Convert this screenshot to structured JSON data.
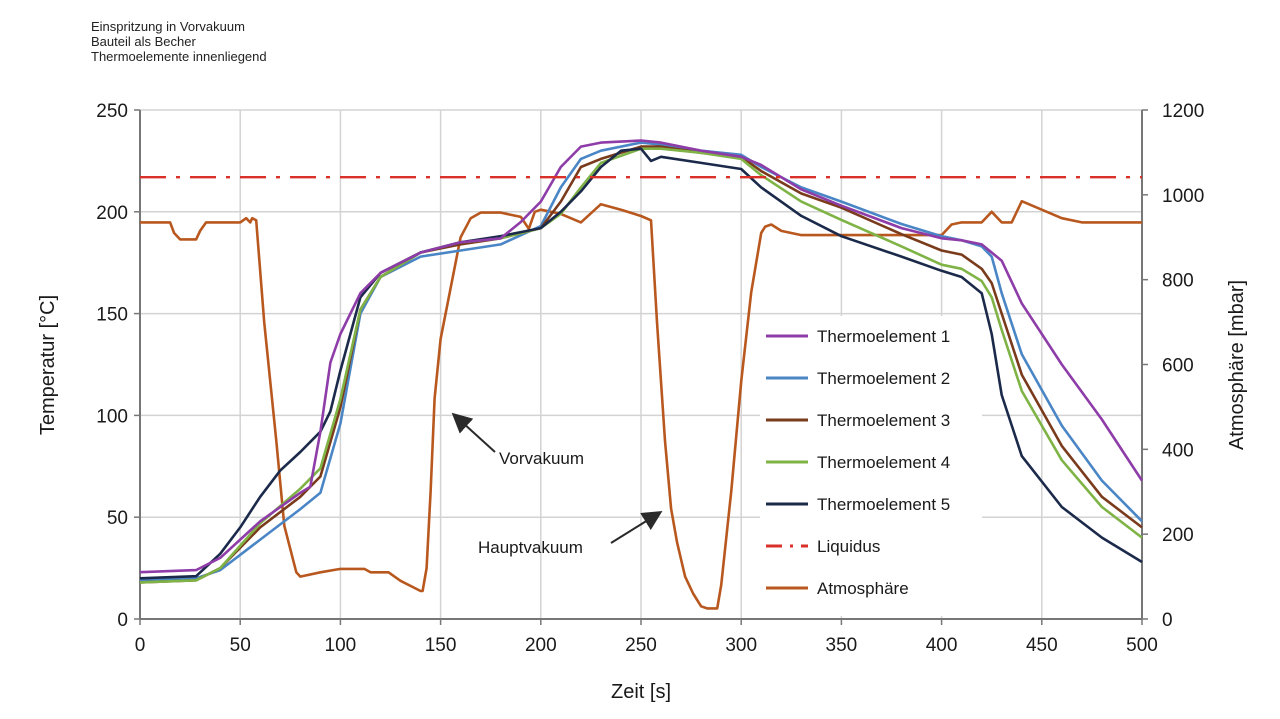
{
  "chart_data": {
    "type": "line",
    "subtitle_lines": [
      "Einspritzung in Vorvakuum",
      "Bauteil als Becher",
      "Thermoelemente innenliegend"
    ],
    "xlabel": "Zeit [s]",
    "ylabel": "Temperatur [°C]",
    "y2label": "Atmosphäre [mbar]",
    "xlim": [
      0,
      500
    ],
    "ylim": [
      0,
      250
    ],
    "y2lim": [
      0,
      1200
    ],
    "xticks": [
      "0",
      "50",
      "100",
      "150",
      "200",
      "250",
      "300",
      "350",
      "400",
      "450",
      "500"
    ],
    "yticks": [
      "0",
      "50",
      "100",
      "150",
      "200",
      "250"
    ],
    "y2ticks": [
      "0",
      "200",
      "400",
      "600",
      "800",
      "1000",
      "1200"
    ],
    "grid": true,
    "legend_position": "center-right",
    "series": [
      {
        "name": "Thermoelement 1",
        "axis": "left",
        "color": "#8e3ca8",
        "style": "solid",
        "x": [
          0,
          28,
          40,
          60,
          80,
          85,
          90,
          95,
          100,
          110,
          120,
          140,
          160,
          180,
          190,
          200,
          210,
          220,
          230,
          250,
          260,
          280,
          300,
          310,
          330,
          350,
          380,
          400,
          410,
          420,
          430,
          440,
          460,
          480,
          500
        ],
        "y": [
          23,
          24,
          30,
          48,
          62,
          65,
          92,
          126,
          140,
          160,
          170,
          180,
          185,
          187,
          195,
          205,
          222,
          232,
          234,
          235,
          234,
          230,
          227,
          223,
          211,
          203,
          192,
          187,
          186,
          184,
          176,
          155,
          125,
          98,
          68
        ]
      },
      {
        "name": "Thermoelement 2",
        "axis": "left",
        "color": "#4a86c5",
        "style": "solid",
        "x": [
          0,
          28,
          40,
          60,
          80,
          90,
          100,
          110,
          120,
          140,
          160,
          180,
          200,
          210,
          220,
          230,
          250,
          260,
          280,
          300,
          310,
          330,
          350,
          380,
          400,
          410,
          420,
          425,
          430,
          440,
          460,
          480,
          500
        ],
        "y": [
          19,
          20,
          24,
          39,
          54,
          62,
          96,
          150,
          168,
          178,
          181,
          184,
          193,
          212,
          226,
          230,
          234,
          233,
          230,
          228,
          222,
          212,
          205,
          194,
          188,
          186,
          183,
          178,
          160,
          130,
          95,
          68,
          48
        ]
      },
      {
        "name": "Thermoelement 3",
        "axis": "left",
        "color": "#7a3b1c",
        "style": "solid",
        "x": [
          0,
          28,
          40,
          60,
          80,
          90,
          100,
          110,
          120,
          140,
          160,
          180,
          200,
          210,
          220,
          230,
          250,
          260,
          280,
          300,
          310,
          330,
          350,
          380,
          400,
          410,
          420,
          425,
          430,
          440,
          460,
          480,
          500
        ],
        "y": [
          18,
          19,
          25,
          45,
          60,
          70,
          104,
          152,
          168,
          180,
          184,
          187,
          192,
          205,
          222,
          226,
          232,
          232,
          229,
          227,
          220,
          209,
          202,
          189,
          181,
          179,
          172,
          165,
          150,
          120,
          85,
          60,
          45
        ]
      },
      {
        "name": "Thermoelement 4",
        "axis": "left",
        "color": "#7fb346",
        "style": "solid",
        "x": [
          0,
          28,
          40,
          60,
          80,
          90,
          100,
          110,
          120,
          140,
          160,
          180,
          200,
          210,
          220,
          230,
          250,
          260,
          280,
          300,
          310,
          330,
          350,
          380,
          400,
          410,
          420,
          425,
          430,
          440,
          460,
          480,
          500
        ],
        "y": [
          18,
          19,
          25,
          47,
          64,
          74,
          108,
          152,
          168,
          180,
          185,
          187,
          192,
          199,
          212,
          224,
          231,
          231,
          229,
          226,
          218,
          205,
          196,
          183,
          174,
          172,
          166,
          158,
          142,
          112,
          78,
          55,
          40
        ]
      },
      {
        "name": "Thermoelement 5",
        "axis": "left",
        "color": "#1b2a4a",
        "style": "solid",
        "x": [
          0,
          28,
          40,
          50,
          60,
          70,
          80,
          90,
          95,
          100,
          110,
          120,
          140,
          160,
          180,
          200,
          210,
          220,
          230,
          240,
          250,
          255,
          260,
          280,
          300,
          310,
          330,
          350,
          380,
          400,
          410,
          420,
          425,
          430,
          440,
          460,
          480,
          500
        ],
        "y": [
          20,
          21,
          32,
          45,
          60,
          73,
          82,
          92,
          102,
          122,
          158,
          170,
          180,
          185,
          188,
          192,
          200,
          210,
          222,
          230,
          231,
          225,
          227,
          224,
          221,
          212,
          198,
          188,
          178,
          171,
          168,
          160,
          140,
          110,
          80,
          55,
          40,
          28
        ]
      },
      {
        "name": "Liquidus",
        "axis": "left",
        "color": "#d9302a",
        "style": "dash-dot",
        "x": [
          0,
          500
        ],
        "y": [
          217,
          217
        ]
      },
      {
        "name": "Atmosphäre",
        "axis": "right",
        "color": "#b8581f",
        "style": "solid",
        "x": [
          0,
          15,
          17,
          20,
          25,
          28,
          30,
          33,
          45,
          50,
          53,
          55,
          56,
          58,
          62,
          68,
          72,
          78,
          80,
          90,
          100,
          110,
          112,
          115,
          118,
          120,
          124,
          130,
          140,
          141,
          143,
          145,
          147,
          150,
          160,
          165,
          170,
          180,
          190,
          194,
          197,
          200,
          210,
          220,
          230,
          240,
          250,
          255,
          258,
          262,
          265,
          268,
          272,
          276,
          280,
          283,
          287,
          288,
          290,
          295,
          300,
          305,
          310,
          312,
          315,
          320,
          330,
          350,
          380,
          400,
          402,
          405,
          410,
          420,
          425,
          430,
          435,
          440,
          450,
          460,
          470,
          500
        ],
        "y": [
          935,
          935,
          910,
          895,
          895,
          895,
          915,
          935,
          935,
          935,
          945,
          935,
          945,
          940,
          700,
          420,
          220,
          110,
          100,
          110,
          118,
          118,
          118,
          110,
          110,
          110,
          110,
          90,
          66,
          66,
          120,
          300,
          520,
          660,
          900,
          945,
          958,
          958,
          948,
          920,
          960,
          965,
          955,
          935,
          978,
          965,
          950,
          940,
          700,
          420,
          260,
          180,
          100,
          60,
          30,
          25,
          25,
          25,
          80,
          300,
          560,
          770,
          910,
          925,
          930,
          915,
          905,
          905,
          905,
          905,
          915,
          930,
          935,
          935,
          960,
          935,
          935,
          985,
          965,
          945,
          935,
          935
        ]
      }
    ],
    "annotations": [
      {
        "text": "Vorvakuum",
        "target_x": 157,
        "target_y": 100
      },
      {
        "text": "Hauptvakuum",
        "target_x": 259,
        "target_y": 52
      }
    ]
  }
}
